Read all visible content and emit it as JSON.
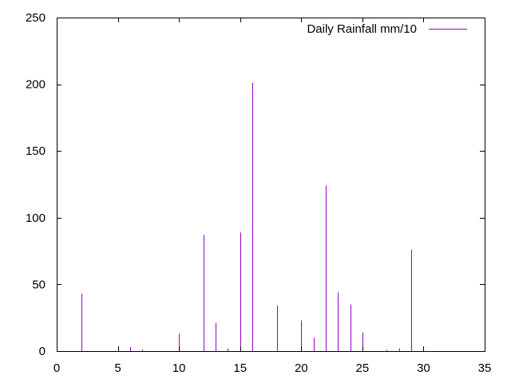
{
  "chart_data": {
    "type": "bar",
    "style": "impulses",
    "title": "",
    "xlabel": "",
    "ylabel": "",
    "xlim": [
      0,
      35
    ],
    "ylim": [
      0,
      250
    ],
    "xticks": [
      0,
      5,
      10,
      15,
      20,
      25,
      30,
      35
    ],
    "yticks": [
      0,
      50,
      100,
      150,
      200,
      250
    ],
    "grid": false,
    "legend_position": "top-right",
    "series": [
      {
        "name": "Daily Rainfall mm/10",
        "color": "#9400d3",
        "points": [
          {
            "x": 2,
            "y": 43
          },
          {
            "x": 5,
            "y": 3
          },
          {
            "x": 6,
            "y": 3
          },
          {
            "x": 7,
            "y": 1
          },
          {
            "x": 10,
            "y": 13
          },
          {
            "x": 12,
            "y": 87
          },
          {
            "x": 13,
            "y": 21
          },
          {
            "x": 14,
            "y": 2
          },
          {
            "x": 15,
            "y": 89
          },
          {
            "x": 16,
            "y": 201
          },
          {
            "x": 18,
            "y": 34
          },
          {
            "x": 20,
            "y": 23
          },
          {
            "x": 21,
            "y": 10
          },
          {
            "x": 22,
            "y": 124
          },
          {
            "x": 23,
            "y": 44
          },
          {
            "x": 24,
            "y": 35
          },
          {
            "x": 25,
            "y": 14
          },
          {
            "x": 27,
            "y": 1
          },
          {
            "x": 28,
            "y": 2
          },
          {
            "x": 29,
            "y": 76
          },
          {
            "x": 30,
            "y": 1
          }
        ]
      }
    ]
  }
}
